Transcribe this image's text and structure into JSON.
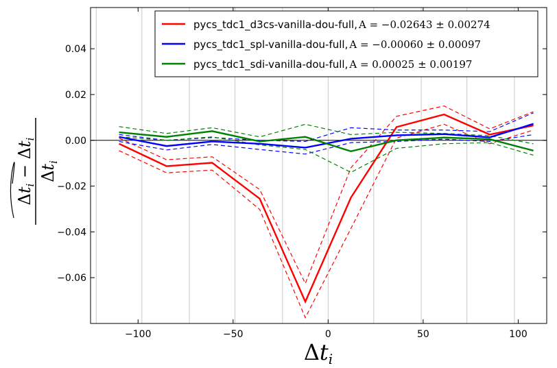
{
  "chart_data": {
    "type": "line",
    "xlabel": "Δt_i",
    "ylabel": "(Δt̃_i − Δt_i) / Δt_i",
    "xlim": [
      -125,
      115
    ],
    "ylim": [
      -0.08,
      0.058
    ],
    "xticks": [
      -100,
      -50,
      0,
      50,
      100
    ],
    "xtick_labels": [
      "−100",
      "−50",
      "0",
      "50",
      "100"
    ],
    "yticks": [
      -0.06,
      -0.04,
      -0.02,
      0.0,
      0.02,
      0.04
    ],
    "ytick_labels": [
      "−0.06",
      "−0.04",
      "−0.02",
      "0.00",
      "0.02",
      "0.04"
    ],
    "vertical_gridlines_x": [
      -122,
      -98,
      -73,
      -49,
      -24,
      0,
      24,
      49,
      73,
      98
    ],
    "zero_line": 0.0,
    "legend_position": "top-right",
    "x": [
      -110,
      -85,
      -61,
      -36,
      -12,
      12,
      36,
      61,
      85,
      108
    ],
    "series": [
      {
        "name": "pycs_tdc1_d3cs-vanilla-dou-full",
        "legend_stat": "A = −0.02643 ± 0.00274",
        "color": "#ff0000",
        "values": [
          -0.0015,
          -0.0113,
          -0.0098,
          -0.0255,
          -0.0705,
          -0.025,
          0.0058,
          0.0113,
          0.0025,
          0.0065
        ],
        "upper": [
          0.001,
          -0.0085,
          -0.0072,
          -0.0215,
          -0.0625,
          -0.012,
          0.0105,
          0.015,
          0.005,
          0.0125
        ],
        "lower": [
          -0.0045,
          -0.0142,
          -0.013,
          -0.0302,
          -0.0775,
          -0.0385,
          0.001,
          0.007,
          -0.0015,
          0.0045
        ]
      },
      {
        "name": "pycs_tdc1_spl-vanilla-dou-full",
        "legend_stat": "A = −0.00060 ± 0.00097",
        "color": "#0000ff",
        "values": [
          0.0015,
          -0.0025,
          -0.0005,
          -0.0015,
          -0.0032,
          0.0007,
          0.0022,
          0.0027,
          0.0013,
          0.0072
        ],
        "upper": [
          0.0025,
          0.0,
          0.0012,
          0.0,
          -0.0005,
          0.0055,
          0.0045,
          0.0045,
          0.0038,
          0.012
        ],
        "lower": [
          -0.0005,
          -0.0042,
          -0.0018,
          -0.004,
          -0.006,
          -0.001,
          -0.0005,
          0.0005,
          -0.0005,
          0.0025
        ]
      },
      {
        "name": "pycs_tdc1_sdi-vanilla-dou-full",
        "legend_stat": "A = 0.00025 ± 0.00197",
        "color": "#008000",
        "values": [
          0.0035,
          0.0015,
          0.004,
          -0.0005,
          0.0015,
          -0.0048,
          0.0,
          0.0012,
          0.0005,
          -0.0045
        ],
        "upper": [
          0.006,
          0.003,
          0.0055,
          0.0015,
          0.007,
          0.0025,
          0.0035,
          0.003,
          0.002,
          -0.0015
        ],
        "lower": [
          0.0015,
          0.0,
          0.0015,
          -0.002,
          -0.004,
          -0.014,
          -0.0035,
          -0.0015,
          -0.001,
          -0.0065
        ]
      }
    ]
  }
}
